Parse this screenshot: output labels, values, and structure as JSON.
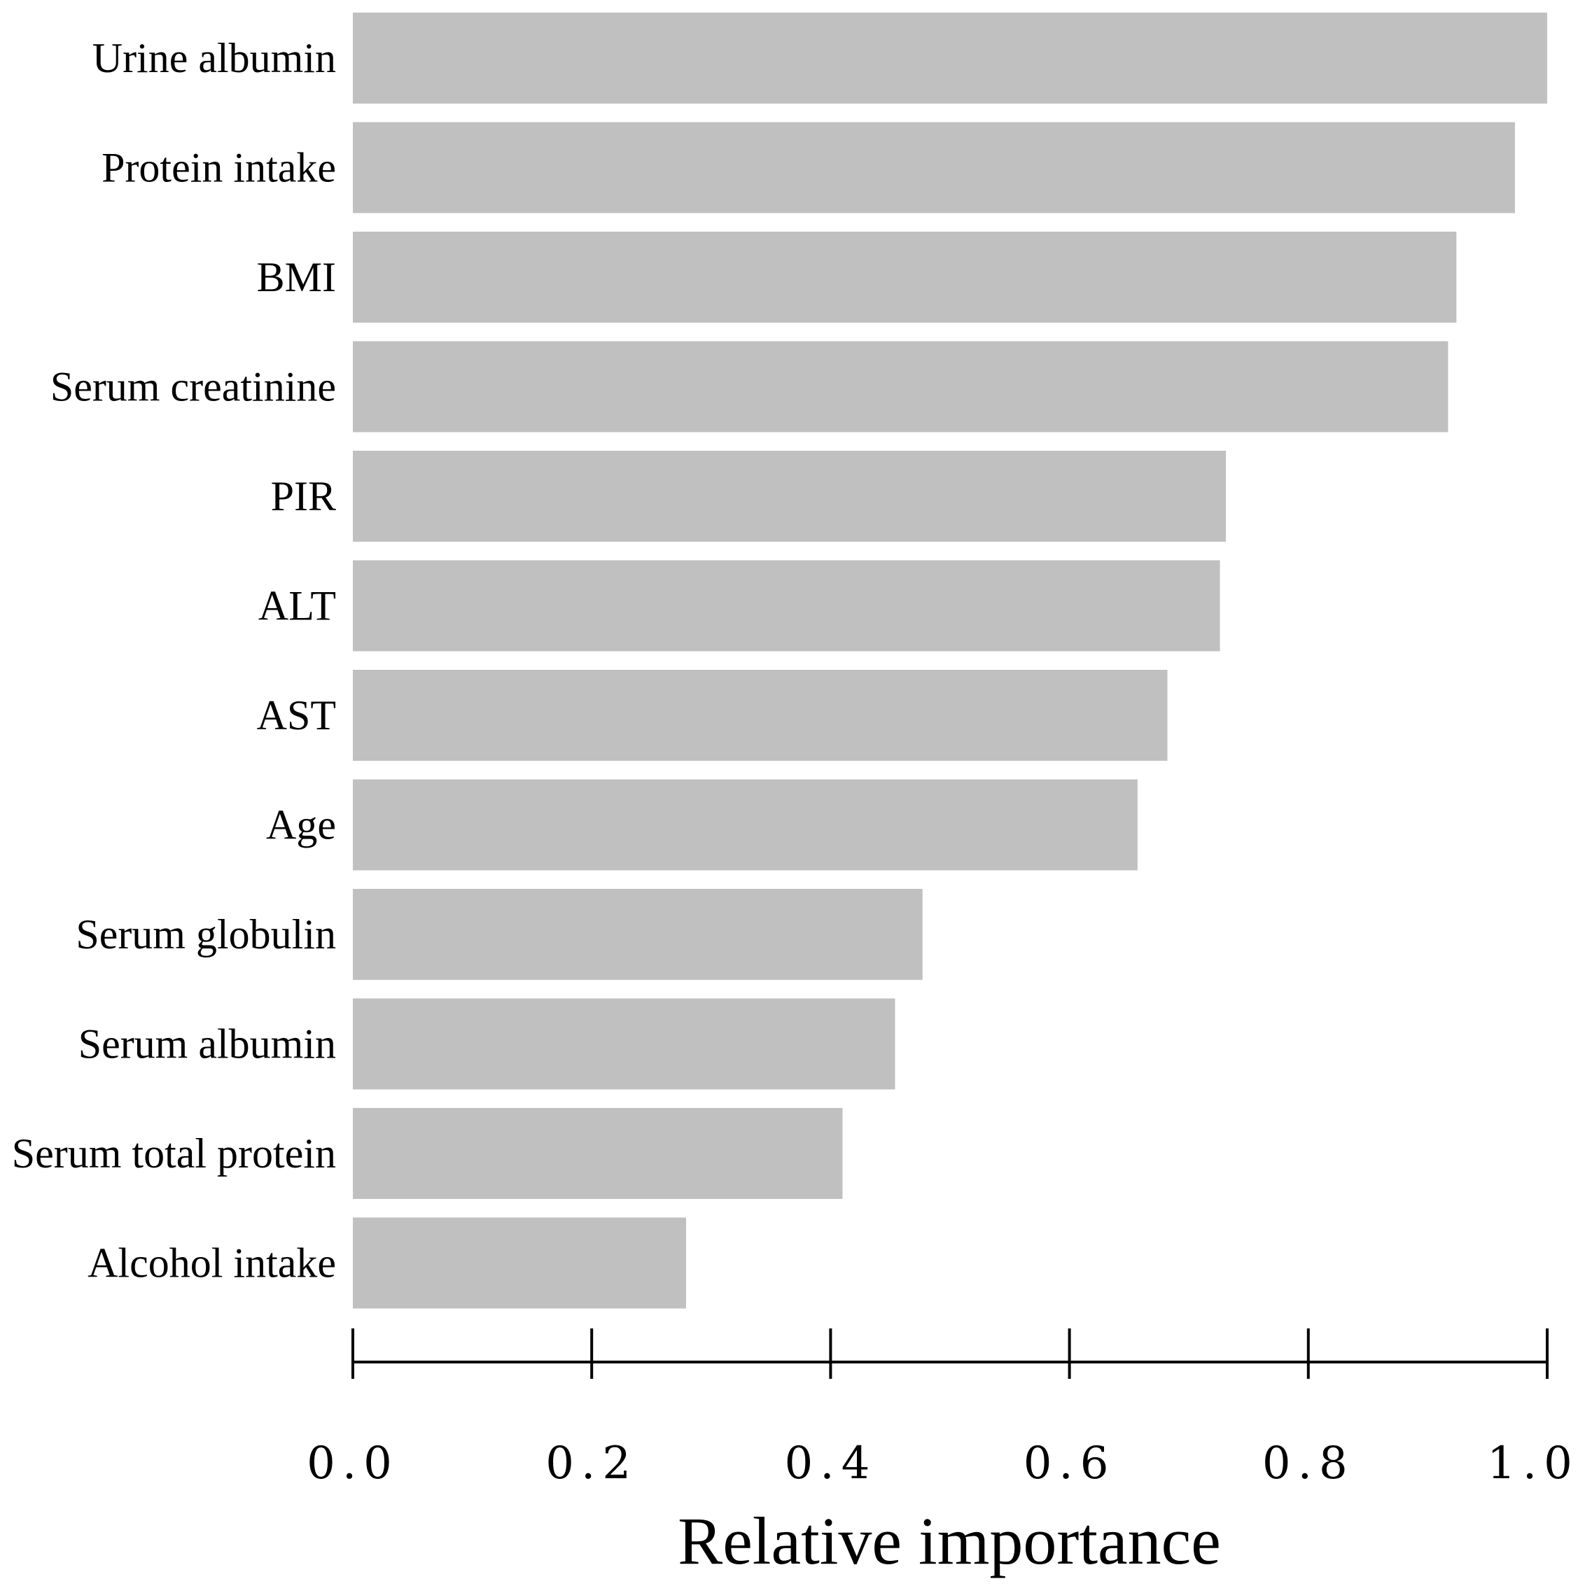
{
  "chart_data": {
    "type": "bar",
    "orientation": "horizontal",
    "categories": [
      "Urine albumin",
      "Protein intake",
      "BMI",
      "Serum creatinine",
      "PIR",
      "ALT",
      "AST",
      "Age",
      "Serum globulin",
      "Serum albumin",
      "Serum total protein",
      "Alcohol intake"
    ],
    "values": [
      1.0,
      0.973,
      0.924,
      0.917,
      0.731,
      0.726,
      0.682,
      0.657,
      0.477,
      0.454,
      0.41,
      0.279
    ],
    "xlabel": "Relative importance",
    "ylabel": "",
    "title": "",
    "xlim": [
      0,
      1.0
    ],
    "x_ticks": [
      0.0,
      0.2,
      0.4,
      0.6,
      0.8,
      1.0
    ],
    "x_tick_labels": [
      "0.0",
      "0.2",
      "0.4",
      "0.6",
      "0.8",
      "1.0"
    ],
    "grid": false,
    "bar_color": "#c0c0c0"
  }
}
